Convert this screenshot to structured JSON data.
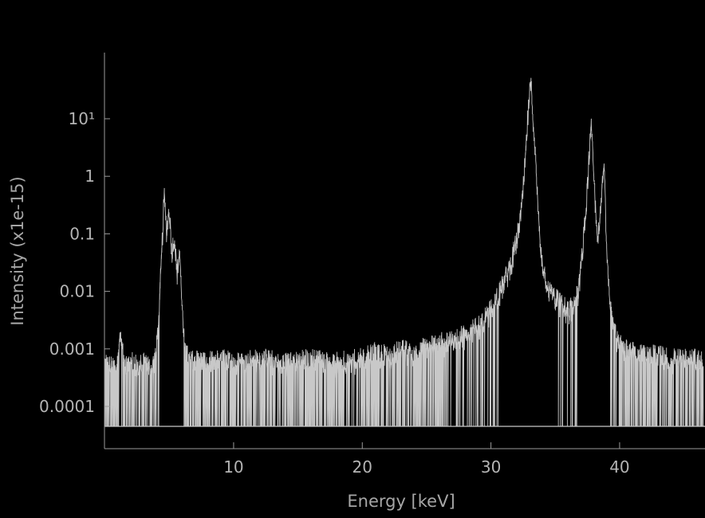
{
  "chart_data": {
    "type": "line",
    "title": "",
    "xlabel": "Energy [keV]",
    "ylabel": "Intensity (x1e-15)",
    "x_scale": "linear",
    "y_scale": "log",
    "xlim": [
      0,
      46.5
    ],
    "ylim": [
      3e-05,
      200
    ],
    "grid": false,
    "legend": "none",
    "x_ticks": [
      {
        "value": 10,
        "label": "10"
      },
      {
        "value": 20,
        "label": "20"
      },
      {
        "value": 30,
        "label": "30"
      },
      {
        "value": 40,
        "label": "40"
      }
    ],
    "y_ticks": [
      {
        "value": 0.0001,
        "label": "0.0001"
      },
      {
        "value": 0.001,
        "label": "0.001"
      },
      {
        "value": 0.01,
        "label": "0.01"
      },
      {
        "value": 0.1,
        "label": "0.1"
      },
      {
        "value": 1,
        "label": "1"
      },
      {
        "value": 10,
        "label": "10¹"
      }
    ],
    "colors": {
      "background": "#000000",
      "series": "#c8c8c8",
      "axis": "#9a9a9a",
      "text": "#b4b4b4"
    },
    "series": [
      {
        "x": [
          0.0,
          0.5,
          1.0,
          1.2,
          1.5,
          2.0,
          2.5,
          3.0,
          3.5,
          3.8,
          4.0,
          4.2,
          4.4,
          4.6,
          4.8,
          5.0,
          5.2,
          5.4,
          5.6,
          5.8,
          6.0,
          6.2,
          6.4,
          6.6,
          7.0,
          8.0,
          9.0,
          10.0,
          12.0,
          14.0,
          16.0,
          18.0,
          20.0,
          21.0,
          22.0,
          23.0,
          24.0,
          25.0,
          26.0,
          27.0,
          28.0,
          29.0,
          30.0,
          30.5,
          31.0,
          31.5,
          32.0,
          32.4,
          32.7,
          32.9,
          33.1,
          33.3,
          33.5,
          33.7,
          33.9,
          34.2,
          34.6,
          35.0,
          35.5,
          36.0,
          36.4,
          36.8,
          37.1,
          37.4,
          37.6,
          37.8,
          38.0,
          38.2,
          38.4,
          38.6,
          38.8,
          39.0,
          39.3,
          39.6,
          40.0,
          40.5,
          41.0,
          42.0,
          43.0,
          44.0,
          45.0,
          46.0,
          46.5
        ],
        "y": [
          0.0006,
          0.0005,
          0.0006,
          0.0025,
          0.0005,
          0.0007,
          0.0005,
          0.0006,
          0.0005,
          0.0006,
          0.001,
          0.005,
          0.04,
          0.5,
          0.12,
          0.3,
          0.05,
          0.1,
          0.02,
          0.06,
          0.005,
          0.001,
          0.0008,
          0.0006,
          0.0007,
          0.0006,
          0.0007,
          0.0006,
          0.0007,
          0.0006,
          0.0007,
          0.0006,
          0.0007,
          0.0009,
          0.0008,
          0.001,
          0.0009,
          0.0012,
          0.0013,
          0.0015,
          0.0018,
          0.0025,
          0.005,
          0.008,
          0.015,
          0.03,
          0.08,
          0.3,
          2.5,
          15,
          45,
          10,
          1.5,
          0.2,
          0.05,
          0.02,
          0.01,
          0.008,
          0.006,
          0.005,
          0.006,
          0.01,
          0.05,
          0.3,
          2,
          7,
          1,
          0.15,
          0.1,
          0.5,
          1.8,
          0.06,
          0.006,
          0.002,
          0.0012,
          0.001,
          0.0009,
          0.0008,
          0.0008,
          0.0007,
          0.0007,
          0.0007,
          0.0006
        ]
      }
    ]
  }
}
